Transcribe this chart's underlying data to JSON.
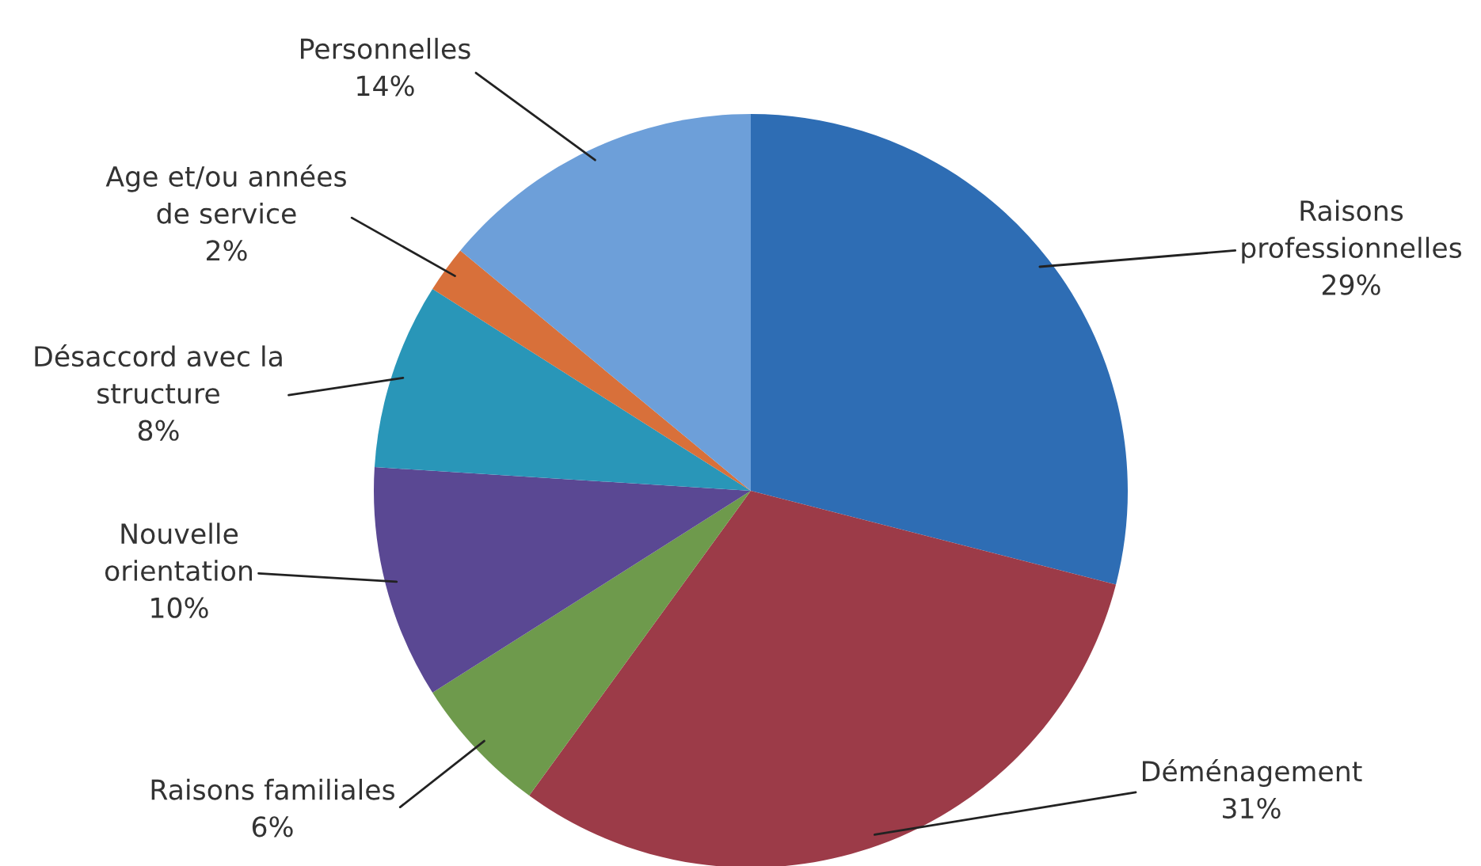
{
  "chart_data": {
    "type": "pie",
    "categories": [
      "Raisons\nprofessionnelles",
      "Déménagement",
      "Raisons familiales",
      "Nouvelle\norientation",
      "Désaccord avec la\nstructure",
      "Age et/ou années\nde service",
      "Personnelles"
    ],
    "values": [
      29,
      31,
      6,
      10,
      8,
      2,
      14
    ],
    "value_labels": [
      "29%",
      "31%",
      "6%",
      "10%",
      "8%",
      "2%",
      "14%"
    ],
    "colors": [
      "#2e6db4",
      "#9c3b48",
      "#6e9a4c",
      "#5a4893",
      "#2996b8",
      "#d8703a",
      "#6d9fd9"
    ],
    "legend": false
  }
}
